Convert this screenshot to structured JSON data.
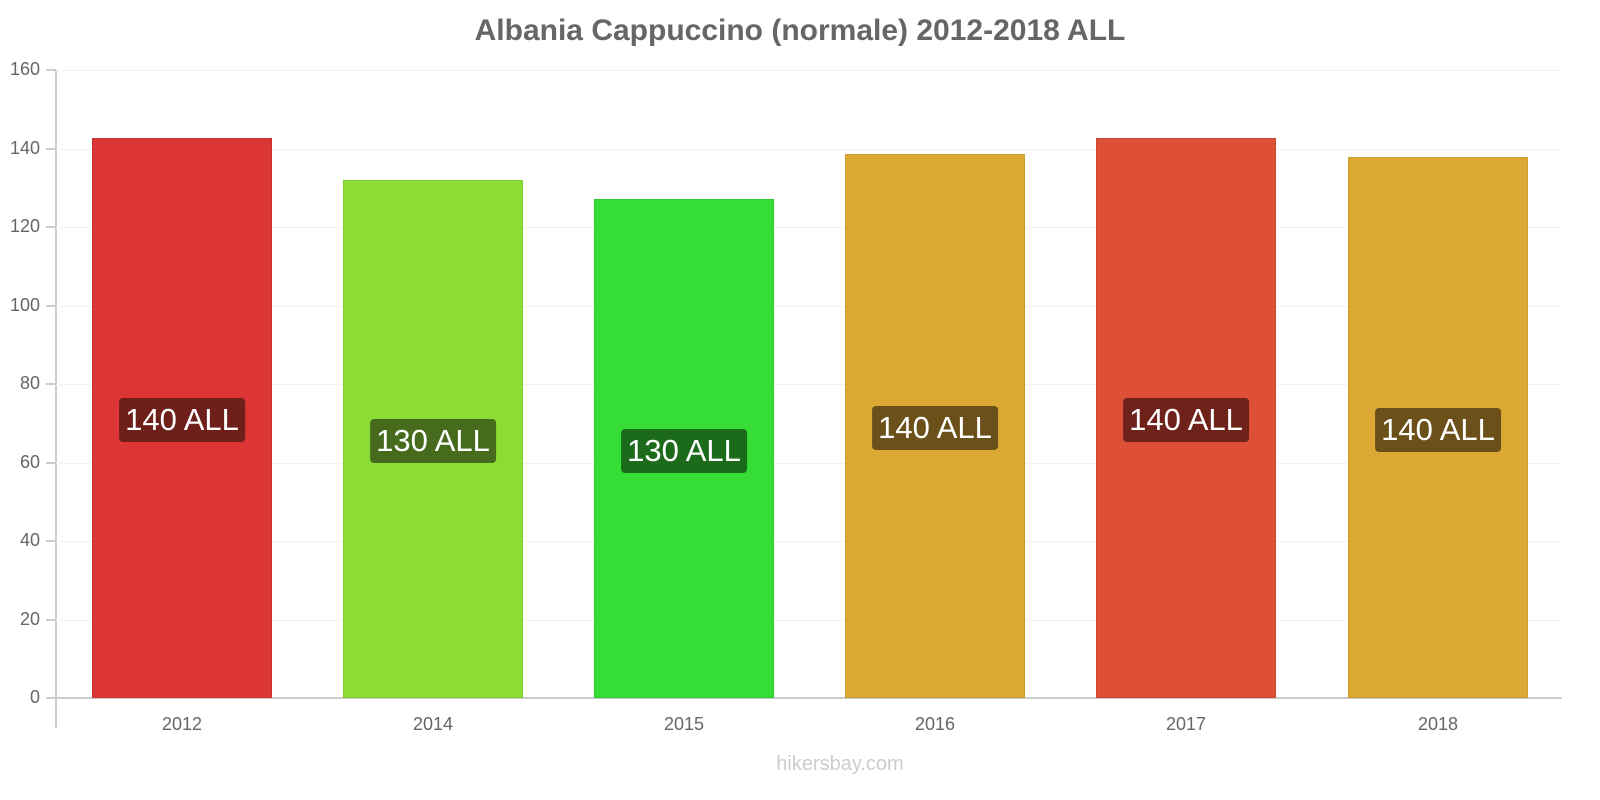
{
  "title": "Albania Cappuccino (normale) 2012-2018 ALL",
  "watermark": "hikersbay.com",
  "chart_data": {
    "type": "bar",
    "title": "Albania Cappuccino (normale) 2012-2018 ALL",
    "xlabel": "",
    "ylabel": "",
    "categories": [
      "2012",
      "2014",
      "2015",
      "2016",
      "2017",
      "2018"
    ],
    "values": [
      142.7,
      132,
      127.1,
      138.6,
      142.7,
      137.8
    ],
    "data_labels": [
      "140 ALL",
      "130 ALL",
      "130 ALL",
      "140 ALL",
      "140 ALL",
      "140 ALL"
    ],
    "bar_colors": [
      "#db3535",
      "#8bdd35",
      "#35dd35",
      "#dda935",
      "#dd5035",
      "#dda935"
    ],
    "label_bg_colors": [
      "#6e1f1a",
      "#476b1c",
      "#1b6b1b",
      "#6b5119",
      "#6e221a",
      "#6b5119"
    ],
    "ylim": [
      0,
      160
    ],
    "yticks": [
      0,
      20,
      40,
      60,
      80,
      100,
      120,
      140,
      160
    ],
    "grid": true,
    "legend": null
  }
}
